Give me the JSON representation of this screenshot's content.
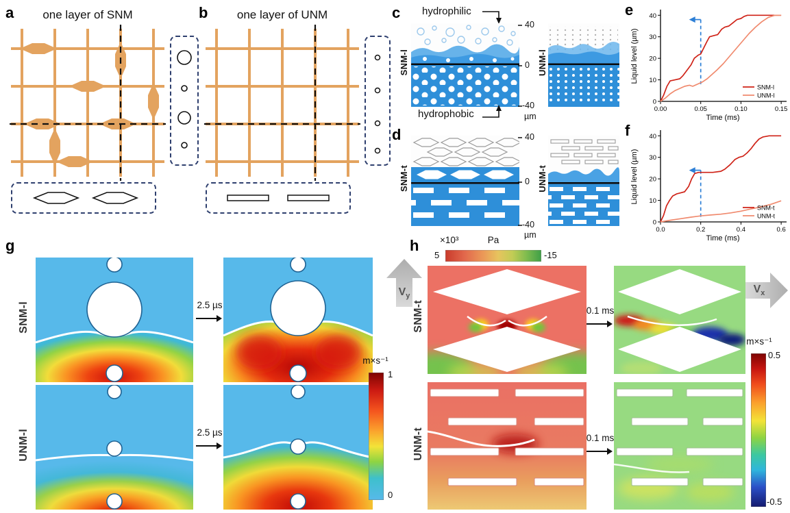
{
  "figure": {
    "panel_a": {
      "label": "a",
      "title": "one layer of SNM"
    },
    "panel_b": {
      "label": "b",
      "title": "one layer of UNM"
    },
    "panel_c": {
      "label": "c",
      "top_annotation": "hydrophilic",
      "bottom_annotation": "hydrophobic",
      "left_label": "SNM-l",
      "right_label": "UNM-l",
      "scale_max": "40",
      "scale_zero": "0",
      "scale_min": "-40",
      "scale_unit": "µm"
    },
    "panel_d": {
      "label": "d",
      "left_label": "SNM-t",
      "right_label": "UNM-t",
      "scale_max": "40",
      "scale_zero": "0",
      "scale_min": "-40",
      "scale_unit": "µm"
    },
    "panel_e": {
      "label": "e"
    },
    "panel_f": {
      "label": "f"
    },
    "panel_g": {
      "label": "g",
      "row1_label": "SNM-l",
      "row2_label": "UNM-l",
      "time_label": "2.5 µs",
      "colorbar_unit": "m×s⁻¹",
      "colorbar_max": "1",
      "colorbar_min": "0",
      "velocity_letter": "V",
      "velocity_sub": "y"
    },
    "panel_h": {
      "label": "h",
      "row1_label": "SNM-t",
      "row2_label": "UNM-t",
      "time_label": "0.1 ms",
      "pressure_multiplier": "×10³",
      "pressure_unit": "Pa",
      "pressure_max": "5",
      "pressure_min": "-15",
      "colorbar_unit": "m×s⁻¹",
      "colorbar_max": "0.5",
      "colorbar_min": "-0.5",
      "velocity_letter": "V",
      "velocity_sub": "x"
    }
  },
  "chart_data": [
    {
      "target": "chart-e",
      "type": "line",
      "xlabel": "Time (ms)",
      "ylabel": "Liquid level (µm)",
      "xlim": [
        0,
        0.155
      ],
      "ylim": [
        0,
        42
      ],
      "xticks": [
        0,
        0.05,
        0.1,
        0.15
      ],
      "xtick_labels": [
        "0.00",
        "0.05",
        "0.10",
        "0.15"
      ],
      "yticks": [
        0,
        10,
        20,
        30,
        40
      ],
      "grid": false,
      "legend_position": "bottom-right",
      "annotation": {
        "x": 0.05,
        "y1": 8,
        "y2": 38,
        "color": "#2d7fd6"
      },
      "series": [
        {
          "name": "SNM-l",
          "color": "#cf2217",
          "x": [
            0,
            0.004,
            0.008,
            0.012,
            0.018,
            0.024,
            0.028,
            0.032,
            0.038,
            0.042,
            0.047,
            0.05,
            0.054,
            0.058,
            0.061,
            0.066,
            0.071,
            0.076,
            0.08,
            0.085,
            0.09,
            0.095,
            0.1,
            0.104,
            0.108,
            0.112,
            0.15
          ],
          "y": [
            0,
            3,
            7,
            9.5,
            10,
            10.5,
            12,
            14,
            17,
            20,
            21.5,
            22,
            25,
            28,
            30,
            30.5,
            31,
            33.5,
            34.5,
            35,
            36.5,
            38,
            38.5,
            39.5,
            40,
            40,
            40
          ]
        },
        {
          "name": "UNM-l",
          "color": "#f08a6e",
          "x": [
            0,
            0.006,
            0.012,
            0.018,
            0.024,
            0.03,
            0.036,
            0.04,
            0.046,
            0.052,
            0.058,
            0.064,
            0.07,
            0.078,
            0.086,
            0.094,
            0.102,
            0.11,
            0.118,
            0.126,
            0.134,
            0.142,
            0.15
          ],
          "y": [
            0,
            1.5,
            3.5,
            5,
            6,
            7,
            7.5,
            7,
            8,
            9,
            10.5,
            12.5,
            14.5,
            17.5,
            21,
            24.5,
            28,
            31.5,
            34.5,
            37,
            39,
            40,
            40
          ]
        }
      ]
    },
    {
      "target": "chart-f",
      "type": "line",
      "xlabel": "Time (ms)",
      "ylabel": "Liquid level (µm)",
      "xlim": [
        0,
        0.62
      ],
      "ylim": [
        0,
        42
      ],
      "xticks": [
        0,
        0.2,
        0.4,
        0.6
      ],
      "xtick_labels": [
        "0.0",
        "0.2",
        "0.4",
        "0.6"
      ],
      "yticks": [
        0,
        10,
        20,
        30,
        40
      ],
      "grid": false,
      "legend_position": "bottom-right",
      "annotation": {
        "x": 0.2,
        "y1": 1,
        "y2": 24,
        "color": "#2d7fd6"
      },
      "series": [
        {
          "name": "SNM-t",
          "color": "#cf2217",
          "x": [
            0,
            0.015,
            0.03,
            0.045,
            0.06,
            0.08,
            0.1,
            0.12,
            0.14,
            0.155,
            0.17,
            0.19,
            0.22,
            0.26,
            0.3,
            0.32,
            0.345,
            0.37,
            0.39,
            0.41,
            0.43,
            0.45,
            0.47,
            0.49,
            0.51,
            0.54,
            0.6
          ],
          "y": [
            0,
            3,
            7.5,
            10,
            12,
            13,
            13.5,
            14,
            16.5,
            20,
            22.5,
            23,
            23,
            23,
            23.5,
            24.5,
            26.5,
            29,
            30,
            30.5,
            32,
            34,
            36.5,
            38.5,
            39.5,
            40,
            40
          ]
        },
        {
          "name": "UNM-t",
          "color": "#f08a6e",
          "x": [
            0,
            0.05,
            0.1,
            0.15,
            0.2,
            0.25,
            0.3,
            0.35,
            0.4,
            0.45,
            0.5,
            0.55,
            0.6
          ],
          "y": [
            0,
            0.8,
            1.5,
            2.2,
            2.8,
            3.2,
            3.6,
            4.2,
            5,
            6,
            7,
            8.2,
            9.8
          ]
        }
      ]
    }
  ]
}
